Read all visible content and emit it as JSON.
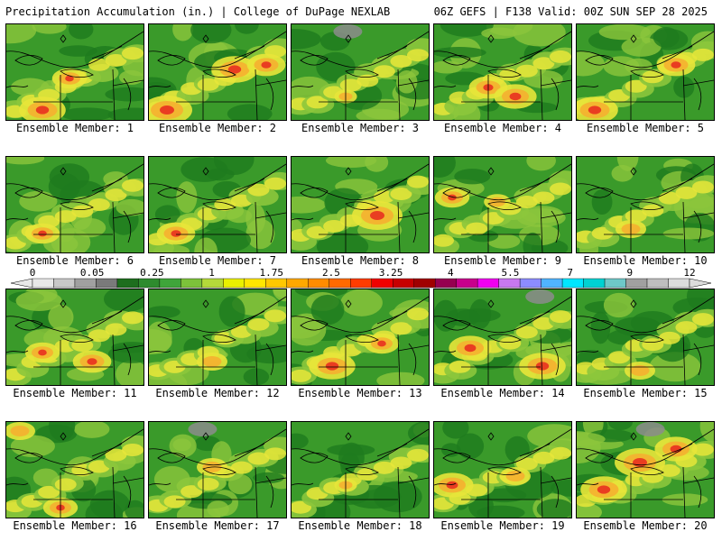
{
  "header": {
    "left": "Precipitation Accumulation (in.) | College of DuPage NEXLAB",
    "right": "06Z GEFS | F138 Valid: 00Z SUN SEP 28 2025"
  },
  "members": [
    {
      "label": "Ensemble Member: 1"
    },
    {
      "label": "Ensemble Member: 2"
    },
    {
      "label": "Ensemble Member: 3"
    },
    {
      "label": "Ensemble Member: 4"
    },
    {
      "label": "Ensemble Member: 5"
    },
    {
      "label": "Ensemble Member: 6"
    },
    {
      "label": "Ensemble Member: 7"
    },
    {
      "label": "Ensemble Member: 8"
    },
    {
      "label": "Ensemble Member: 9"
    },
    {
      "label": "Ensemble Member: 10"
    },
    {
      "label": "Ensemble Member: 11"
    },
    {
      "label": "Ensemble Member: 12"
    },
    {
      "label": "Ensemble Member: 13"
    },
    {
      "label": "Ensemble Member: 14"
    },
    {
      "label": "Ensemble Member: 15"
    },
    {
      "label": "Ensemble Member: 16"
    },
    {
      "label": "Ensemble Member: 17"
    },
    {
      "label": "Ensemble Member: 18"
    },
    {
      "label": "Ensemble Member: 19"
    },
    {
      "label": "Ensemble Member: 20"
    }
  ],
  "colorbar": {
    "tick_labels": [
      "0",
      "0.05",
      "0.25",
      "1",
      "1.75",
      "2.5",
      "3.25",
      "4",
      "5.5",
      "7",
      "9",
      "12"
    ],
    "colors": [
      "#e8e8e8",
      "#c8c8c8",
      "#a0a0a0",
      "#7a7a7a",
      "#1e6e1e",
      "#2e8b2e",
      "#3fa53a",
      "#7cc23a",
      "#b5d93a",
      "#eaf000",
      "#ffe600",
      "#ffc800",
      "#ffa800",
      "#ff8c00",
      "#ff6a00",
      "#ff3c00",
      "#f00000",
      "#c80000",
      "#a00000",
      "#960050",
      "#c8008c",
      "#f000f0",
      "#c878f0",
      "#8c8cff",
      "#50b4ff",
      "#00e6ff",
      "#00d2d2",
      "#6ec8c8",
      "#a0a0a0",
      "#bebebe",
      "#dcdcdc"
    ]
  },
  "palette": {
    "green_dark": "#1e7a1e",
    "green": "#3a9a2a",
    "green_light": "#8cc63c",
    "yellow": "#e8e63a",
    "orange": "#f5b030",
    "red": "#e83020",
    "gray": "#8c8c8c"
  }
}
